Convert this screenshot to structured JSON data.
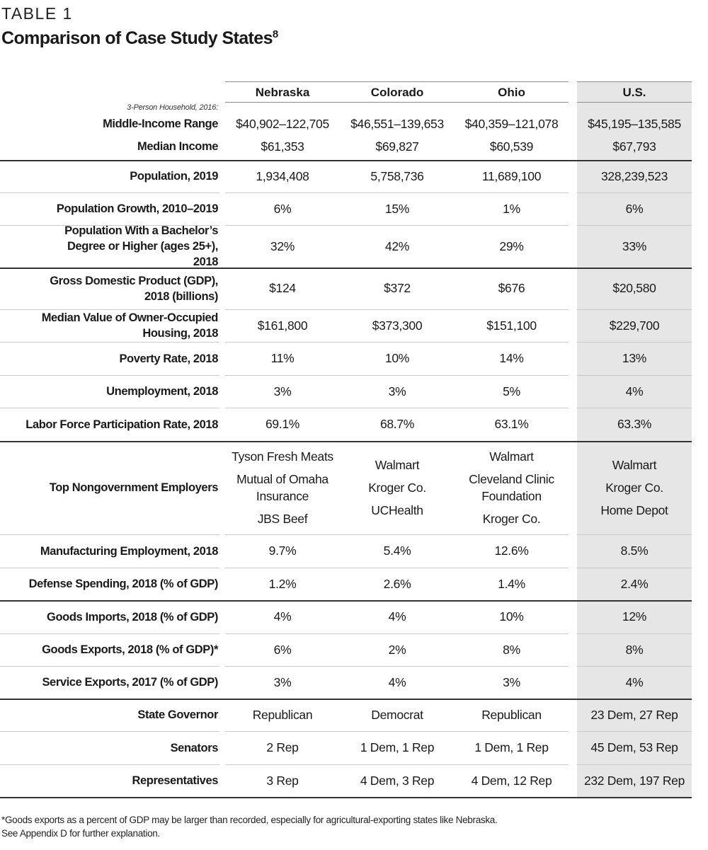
{
  "table_label": "TABLE 1",
  "title": "Comparison of Case Study States",
  "title_footnote_ref": "8",
  "columns": [
    "Nebraska",
    "Colorado",
    "Ohio",
    "U.S."
  ],
  "income_block": {
    "note": "3-Person Household, 2016:",
    "rows": [
      {
        "label": "Middle-Income Range",
        "values": [
          "$40,902–122,705",
          "$46,551–139,653",
          "$40,359–121,078",
          "$45,195–135,585"
        ]
      },
      {
        "label": "Median Income",
        "values": [
          "$61,353",
          "$69,827",
          "$60,539",
          "$67,793"
        ]
      }
    ]
  },
  "rows": [
    {
      "label": "Population, 2019",
      "values": [
        "1,934,408",
        "5,758,736",
        "11,689,100",
        "328,239,523"
      ]
    },
    {
      "label": "Population Growth, 2010–2019",
      "values": [
        "6%",
        "15%",
        "1%",
        "6%"
      ]
    },
    {
      "label": "Population With a Bachelor’s Degree or Higher (ages 25+), 2018",
      "values": [
        "32%",
        "42%",
        "29%",
        "33%"
      ]
    },
    {
      "label": "Gross Domestic Product (GDP), 2018 (billions)",
      "values": [
        "$124",
        "$372",
        "$676",
        "$20,580"
      ]
    },
    {
      "label": "Median Value of Owner-Occupied Housing, 2018",
      "values": [
        "$161,800",
        "$373,300",
        "$151,100",
        "$229,700"
      ]
    },
    {
      "label": "Poverty Rate, 2018",
      "values": [
        "11%",
        "10%",
        "14%",
        "13%"
      ]
    },
    {
      "label": "Unemployment, 2018",
      "values": [
        "3%",
        "3%",
        "5%",
        "4%"
      ]
    },
    {
      "label": "Labor Force Participation Rate, 2018",
      "values": [
        "69.1%",
        "68.7%",
        "63.1%",
        "63.3%"
      ]
    },
    {
      "label": "Top Nongovernment Employers",
      "values": [
        [
          "Tyson Fresh Meats",
          "Mutual of Omaha Insurance",
          "JBS Beef"
        ],
        [
          "Walmart",
          "Kroger Co.",
          "UCHealth"
        ],
        [
          "Walmart",
          "Cleveland Clinic Foundation",
          "Kroger Co."
        ],
        [
          "Walmart",
          "Kroger Co.",
          "Home Depot"
        ]
      ]
    },
    {
      "label": "Manufacturing Employment, 2018",
      "values": [
        "9.7%",
        "5.4%",
        "12.6%",
        "8.5%"
      ]
    },
    {
      "label": "Defense Spending, 2018 (% of GDP)",
      "values": [
        "1.2%",
        "2.6%",
        "1.4%",
        "2.4%"
      ]
    },
    {
      "label": "Goods Imports, 2018 (% of GDP)",
      "values": [
        "4%",
        "4%",
        "10%",
        "12%"
      ]
    },
    {
      "label": "Goods Exports, 2018 (% of GDP)*",
      "values": [
        "6%",
        "2%",
        "8%",
        "8%"
      ]
    },
    {
      "label": "Service Exports, 2017 (% of GDP)",
      "values": [
        "3%",
        "4%",
        "3%",
        "4%"
      ]
    },
    {
      "label": "State Governor",
      "values": [
        "Republican",
        "Democrat",
        "Republican",
        "23 Dem, 27 Rep"
      ]
    },
    {
      "label": "Senators",
      "values": [
        "2 Rep",
        "1 Dem, 1 Rep",
        "1 Dem, 1 Rep",
        "45 Dem, 53 Rep"
      ]
    },
    {
      "label": "Representatives",
      "values": [
        "3 Rep",
        "4 Dem, 3 Rep",
        "4 Dem, 12 Rep",
        "232 Dem, 197 Rep"
      ]
    }
  ],
  "footnote": [
    "*Goods exports as a percent of GDP may be larger than recorded, especially for agricultural-exporting states like Nebraska.",
    "See Appendix D for further explanation."
  ],
  "colors": {
    "us_column_bg": "#e6e6e7",
    "text": "#1a1a1a"
  }
}
